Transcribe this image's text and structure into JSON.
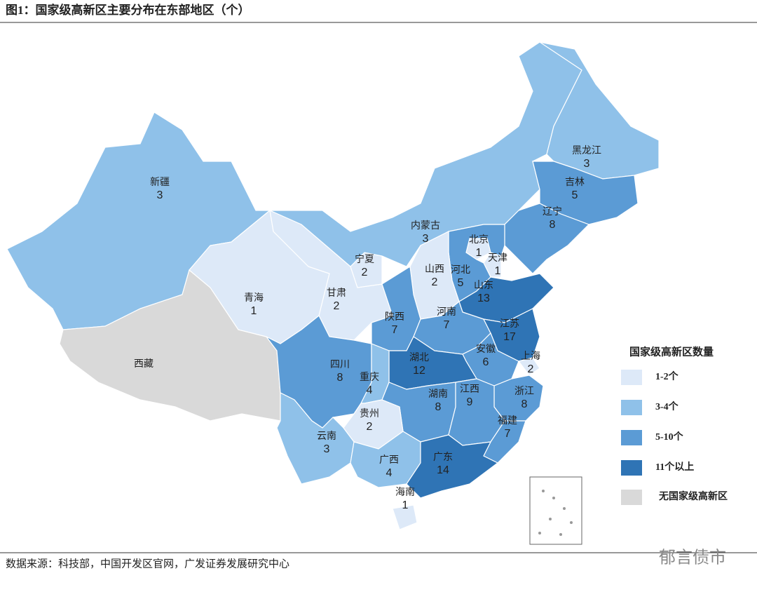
{
  "title": "图1：国家级高新区主要分布在东部地区（个）",
  "map": {
    "provinces": [
      {
        "name": "新疆",
        "count": 3
      },
      {
        "name": "西藏",
        "count": null
      },
      {
        "name": "青海",
        "count": 1
      },
      {
        "name": "甘肃",
        "count": 2
      },
      {
        "name": "宁夏",
        "count": 2
      },
      {
        "name": "内蒙古",
        "count": 3
      },
      {
        "name": "黑龙江",
        "count": 3
      },
      {
        "name": "吉林",
        "count": 5
      },
      {
        "name": "辽宁",
        "count": 8
      },
      {
        "name": "北京",
        "count": 1
      },
      {
        "name": "天津",
        "count": 1
      },
      {
        "name": "河北",
        "count": 5
      },
      {
        "name": "山西",
        "count": 2
      },
      {
        "name": "山东",
        "count": 13
      },
      {
        "name": "陕西",
        "count": 7
      },
      {
        "name": "河南",
        "count": 7
      },
      {
        "name": "江苏",
        "count": 17
      },
      {
        "name": "安徽",
        "count": 6
      },
      {
        "name": "上海",
        "count": 2
      },
      {
        "name": "湖北",
        "count": 12
      },
      {
        "name": "四川",
        "count": 8
      },
      {
        "name": "重庆",
        "count": 4
      },
      {
        "name": "浙江",
        "count": 8
      },
      {
        "name": "湖南",
        "count": 8
      },
      {
        "name": "江西",
        "count": 9
      },
      {
        "name": "贵州",
        "count": 2
      },
      {
        "name": "福建",
        "count": 7
      },
      {
        "name": "云南",
        "count": 3
      },
      {
        "name": "广西",
        "count": 4
      },
      {
        "name": "广东",
        "count": 14
      },
      {
        "name": "海南",
        "count": 1
      }
    ],
    "legend": {
      "title": "国家级高新区数量",
      "items": [
        {
          "label": "1-2个",
          "min": 1,
          "max": 2,
          "color": "#dde9f8"
        },
        {
          "label": "3-4个",
          "min": 3,
          "max": 4,
          "color": "#8fc1e9"
        },
        {
          "label": "5-10个",
          "min": 5,
          "max": 10,
          "color": "#5b9bd5"
        },
        {
          "label": "11个以上",
          "min": 11,
          "color": "#2f74b5"
        },
        {
          "label": "无国家级高新区",
          "color": "#d9d9d9"
        }
      ]
    }
  },
  "source": "数据来源：科技部，中国开发区官网，广发证券发展研究中心",
  "watermark": "郁言债市"
}
